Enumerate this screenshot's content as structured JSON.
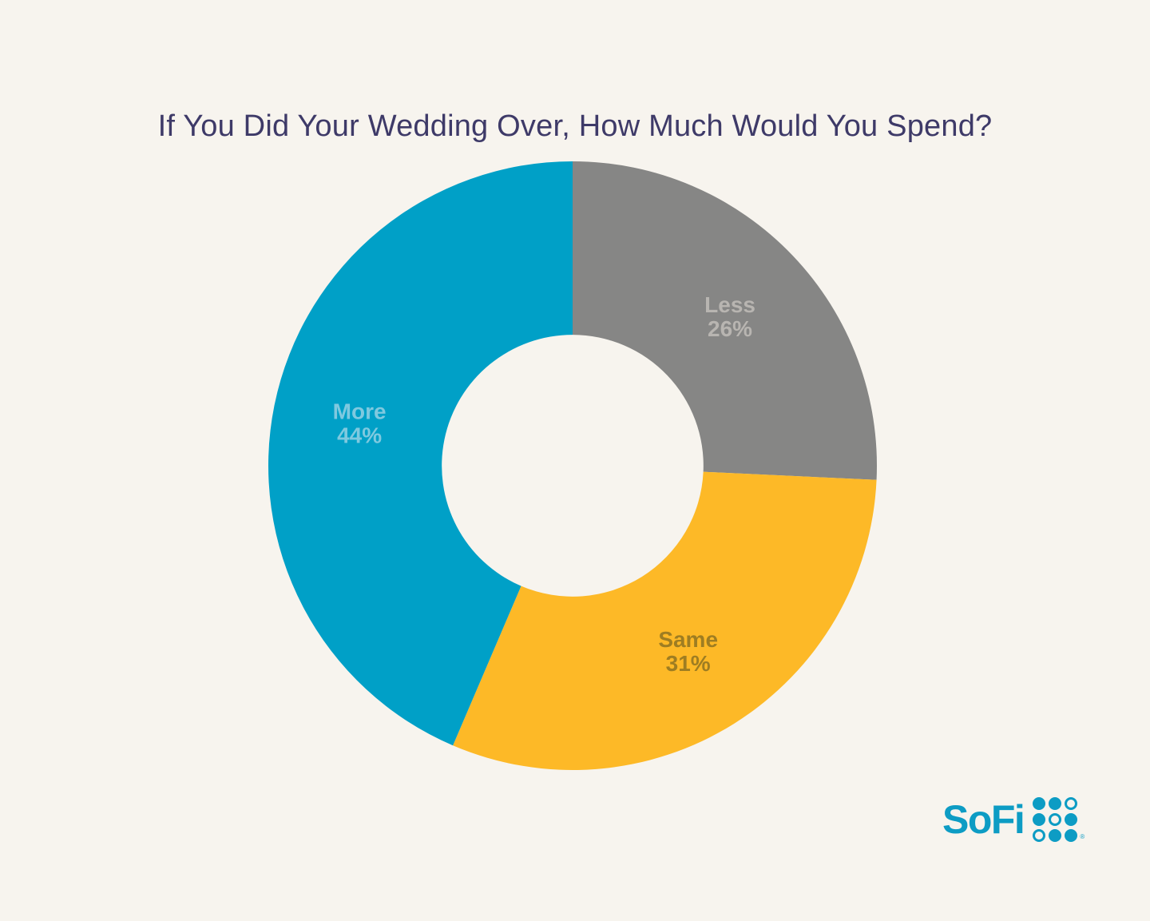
{
  "page": {
    "background_color": "#f7f4ee"
  },
  "chart_data": {
    "type": "pie",
    "variant": "donut",
    "title": "If You Did Your Wedding Over, How Much Would You Spend?",
    "title_color": "#3e3a68",
    "start_angle_deg": 0,
    "direction": "clockwise",
    "inner_radius_ratio": 0.43,
    "legend_position": "none",
    "labels_inside_slices": true,
    "categories": [
      "Less",
      "Same",
      "More"
    ],
    "values": [
      26,
      31,
      44
    ],
    "segments": [
      {
        "label": "Less",
        "value": 26,
        "display": "26%",
        "color": "#868685",
        "label_color": "#b8b5b1"
      },
      {
        "label": "Same",
        "value": 31,
        "display": "31%",
        "color": "#fdb927",
        "label_color": "#9e7d22"
      },
      {
        "label": "More",
        "value": 44,
        "display": "44%",
        "color": "#00a0c7",
        "label_color": "#7fc9df"
      }
    ]
  },
  "logo": {
    "text": "SoFi",
    "color": "#0d9cc4",
    "registered_mark": "®",
    "grid_pattern": [
      [
        1,
        1,
        0
      ],
      [
        1,
        0,
        1
      ],
      [
        0,
        1,
        1
      ]
    ]
  }
}
